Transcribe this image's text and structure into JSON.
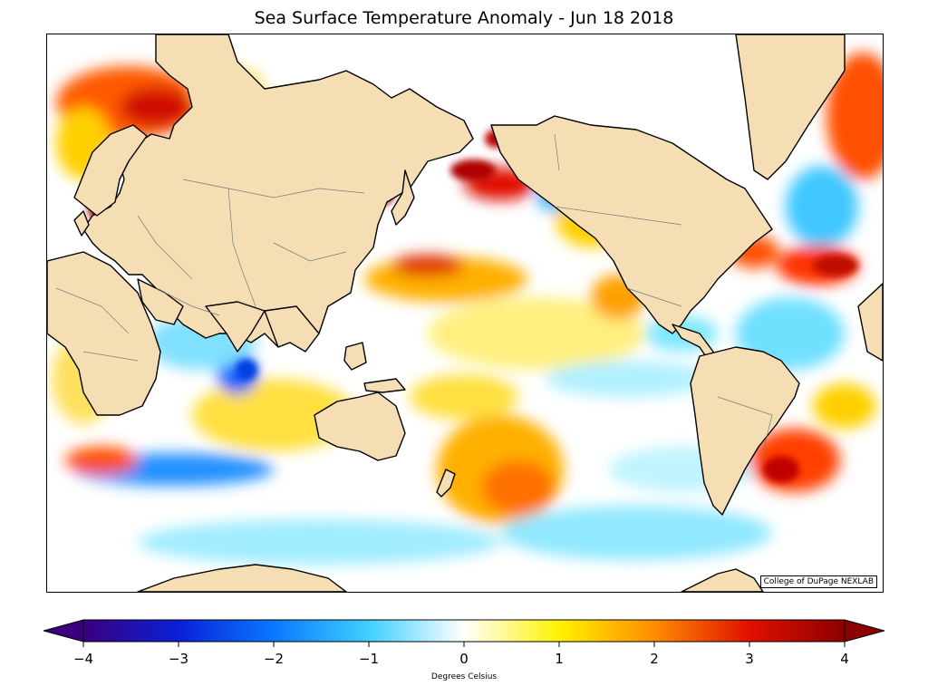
{
  "title": "Sea Surface Temperature Anomaly - Jun 18 2018",
  "credit": "College of DuPage NEXLAB",
  "colorbar": {
    "label": "Degrees Celsius",
    "min": -4,
    "max": 4,
    "ticks": [
      {
        "value": -4,
        "label": "−4"
      },
      {
        "value": -3,
        "label": "−3"
      },
      {
        "value": -2,
        "label": "−2"
      },
      {
        "value": -1,
        "label": "−1"
      },
      {
        "value": 0,
        "label": "0"
      },
      {
        "value": 1,
        "label": "1"
      },
      {
        "value": 2,
        "label": "2"
      },
      {
        "value": 3,
        "label": "3"
      },
      {
        "value": 4,
        "label": "4"
      }
    ],
    "colors": [
      "#3a0080",
      "#0a20d8",
      "#0a78ff",
      "#40d0ff",
      "#ffffff",
      "#fff200",
      "#ff8c00",
      "#e01000",
      "#8c0000"
    ],
    "extend": "both"
  },
  "colors": {
    "land": "#f5deb3",
    "coastline": "#000000",
    "borders": "#7a7a7a"
  }
}
